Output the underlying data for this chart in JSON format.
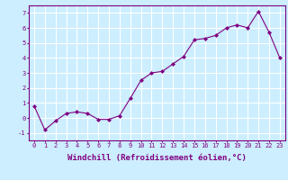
{
  "x": [
    0,
    1,
    2,
    3,
    4,
    5,
    6,
    7,
    8,
    9,
    10,
    11,
    12,
    13,
    14,
    15,
    16,
    17,
    18,
    19,
    20,
    21,
    22,
    23
  ],
  "y": [
    0.8,
    -0.8,
    -0.2,
    0.3,
    0.4,
    0.3,
    -0.1,
    -0.1,
    0.15,
    1.3,
    2.5,
    3.0,
    3.1,
    3.6,
    4.1,
    5.2,
    5.3,
    5.5,
    6.0,
    6.2,
    6.0,
    7.1,
    5.7,
    4.0
  ],
  "line_color": "#800080",
  "marker": "D",
  "markersize": 2.0,
  "linewidth": 0.8,
  "xlabel": "Windchill (Refroidissement éolien,°C)",
  "xlabel_fontsize": 6.5,
  "ylabel_ticks": [
    -1,
    0,
    1,
    2,
    3,
    4,
    5,
    6,
    7
  ],
  "xticks": [
    0,
    1,
    2,
    3,
    4,
    5,
    6,
    7,
    8,
    9,
    10,
    11,
    12,
    13,
    14,
    15,
    16,
    17,
    18,
    19,
    20,
    21,
    22,
    23
  ],
  "xlim": [
    -0.5,
    23.5
  ],
  "ylim": [
    -1.5,
    7.5
  ],
  "background_color": "#cceeff",
  "grid_color": "#ffffff",
  "tick_color": "#800080",
  "tick_fontsize": 5.0,
  "axes_edge_color": "#800080"
}
